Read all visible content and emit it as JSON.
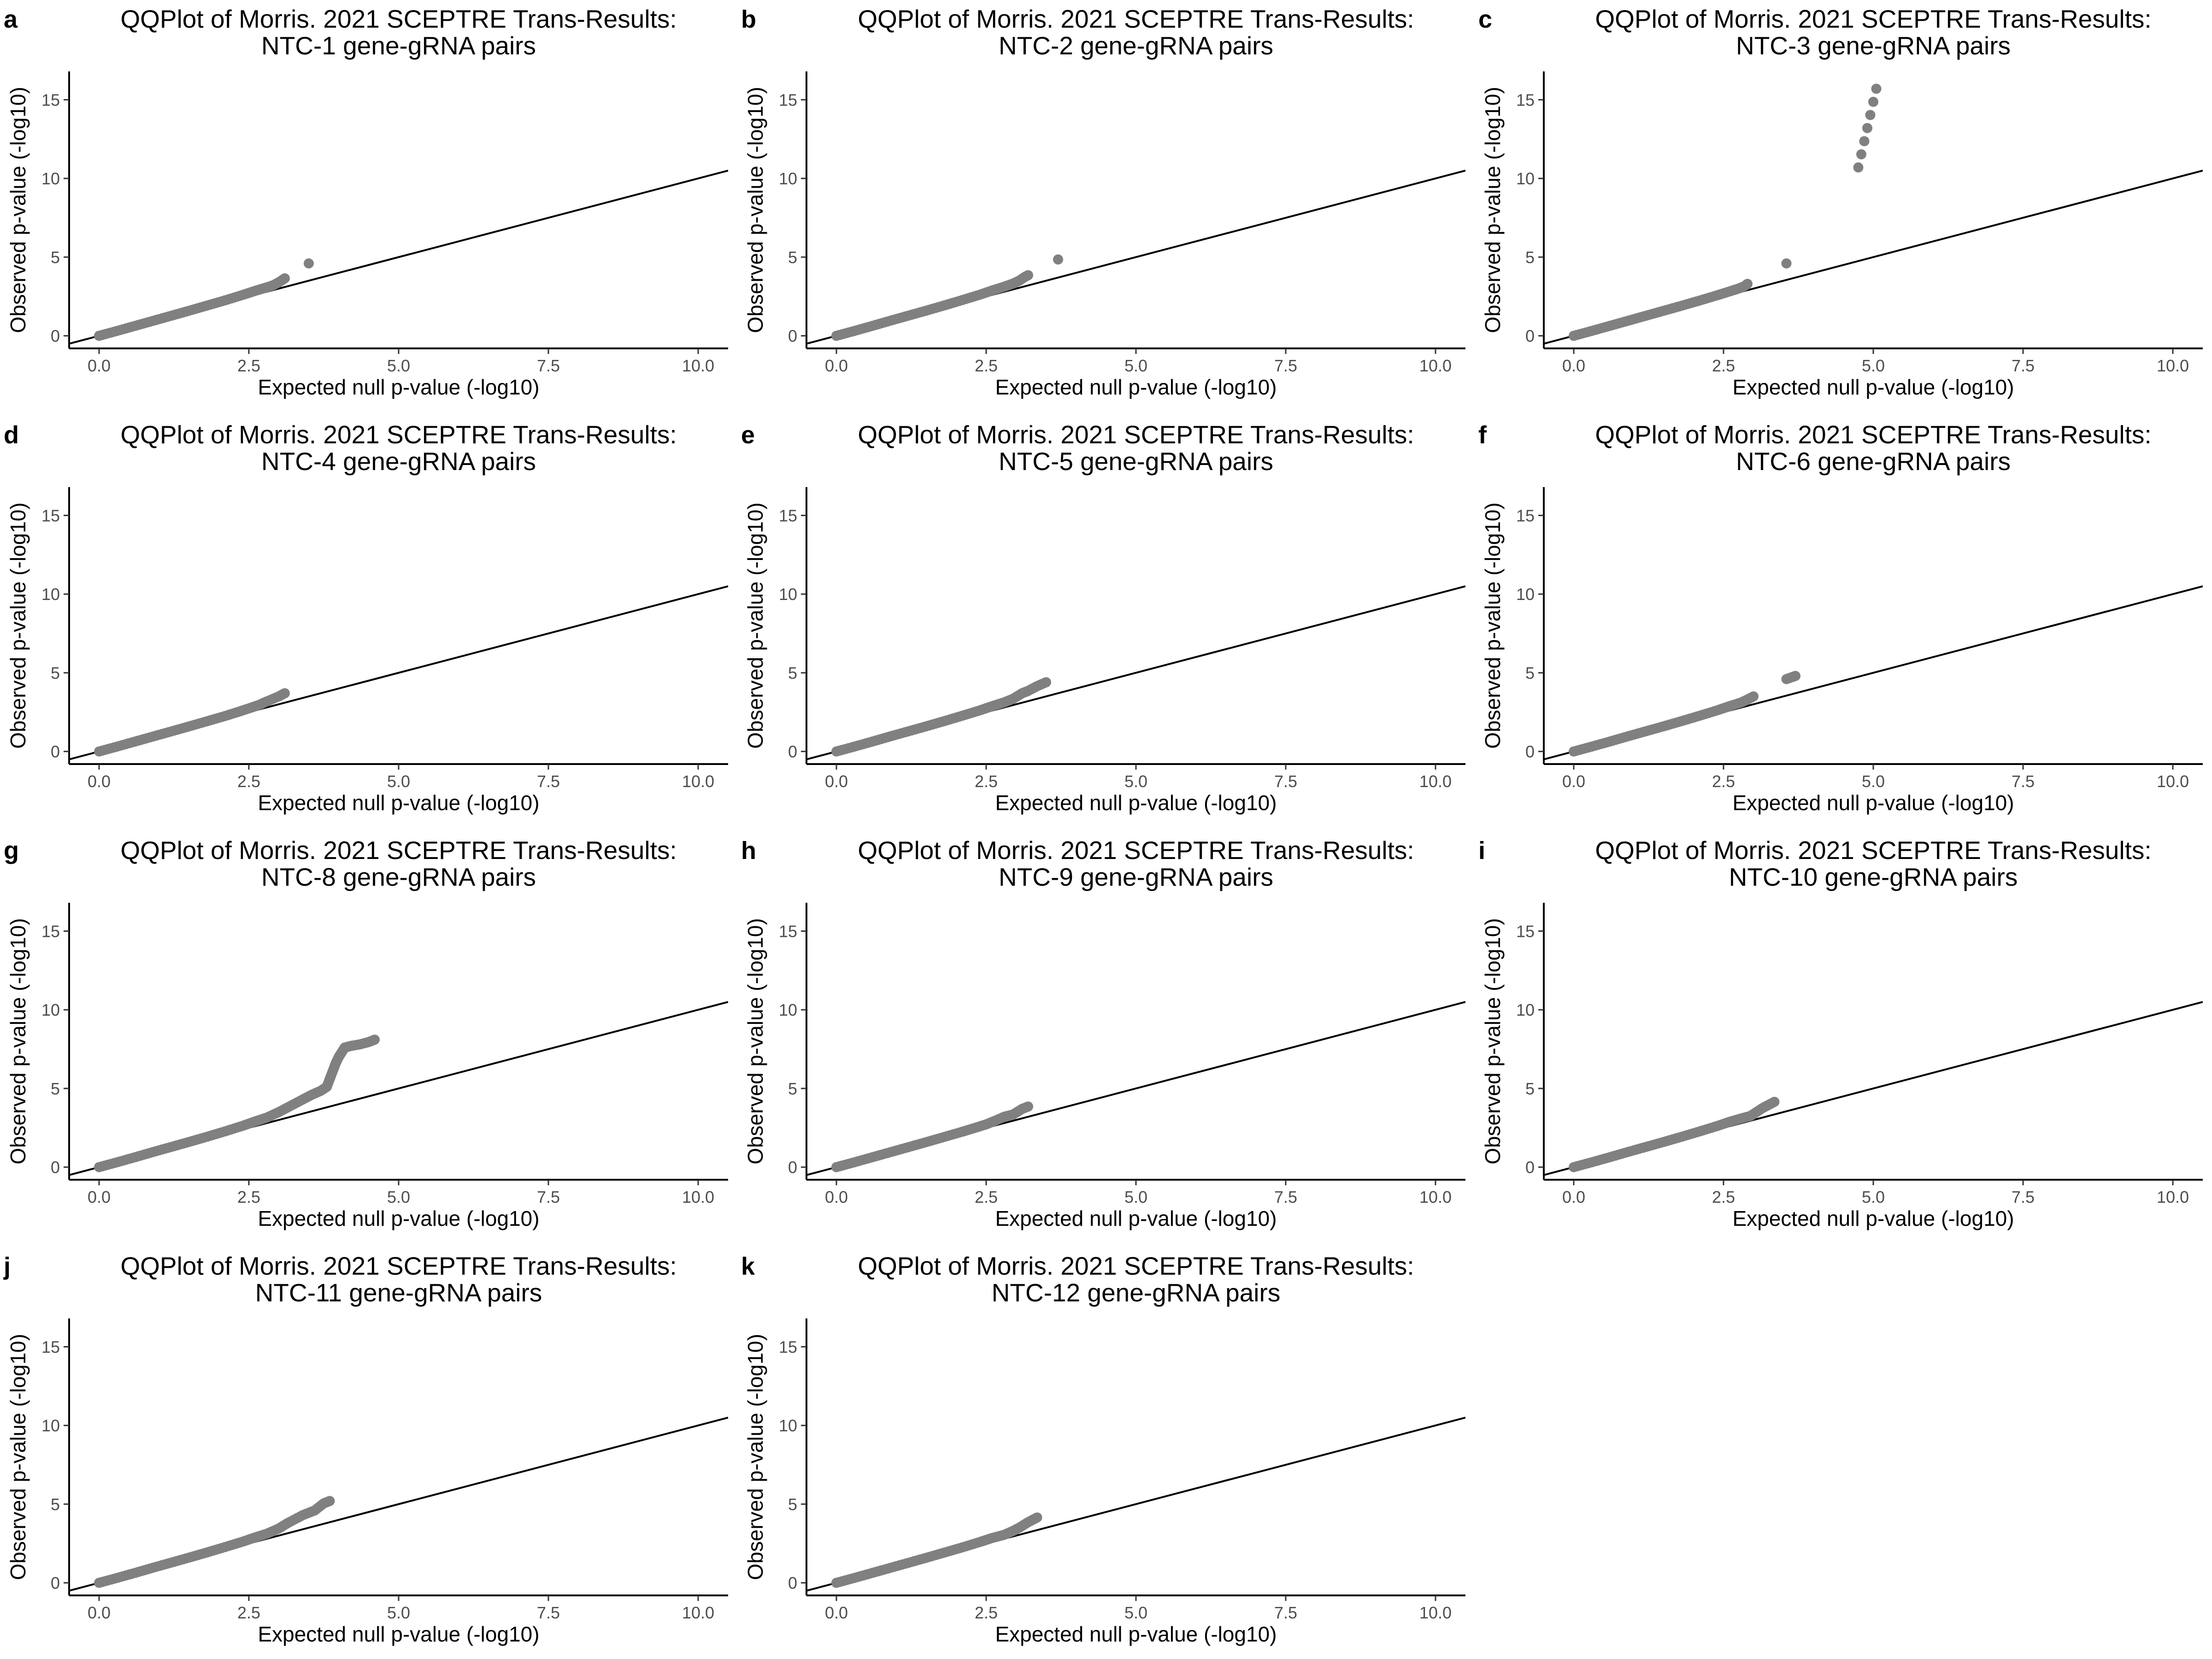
{
  "chart_data": [
    {
      "panel": "a",
      "type": "scatter",
      "title_line1": "QQPlot of Morris. 2021 SCEPTRE Trans-Results:",
      "title_line2": "NTC-1 gene-gRNA pairs",
      "xlabel": "Expected null p-value (-log10)",
      "ylabel": "Observed p-value (-log10)",
      "xlim": [
        -0.5,
        10.5
      ],
      "ylim": [
        -0.8,
        16.8
      ],
      "x_ticks": [
        "0.0",
        "2.5",
        "5.0",
        "7.5",
        "10.0"
      ],
      "y_ticks": [
        "0",
        "5",
        "10",
        "15"
      ],
      "reference_line": "y = x",
      "point_color": "#808080",
      "grid": false,
      "points": [
        [
          0,
          0
        ],
        [
          0.3,
          0.31
        ],
        [
          0.6,
          0.63
        ],
        [
          0.9,
          0.95
        ],
        [
          1.2,
          1.27
        ],
        [
          1.5,
          1.59
        ],
        [
          1.8,
          1.92
        ],
        [
          2.1,
          2.25
        ],
        [
          2.4,
          2.6
        ],
        [
          2.6,
          2.85
        ],
        [
          2.75,
          3.02
        ],
        [
          2.9,
          3.2
        ],
        [
          3.0,
          3.4
        ],
        [
          3.1,
          3.65
        ],
        [
          3.5,
          4.6
        ]
      ]
    },
    {
      "panel": "b",
      "type": "scatter",
      "title_line1": "QQPlot of Morris. 2021 SCEPTRE Trans-Results:",
      "title_line2": "NTC-2 gene-gRNA pairs",
      "xlabel": "Expected null p-value (-log10)",
      "ylabel": "Observed p-value (-log10)",
      "xlim": [
        -0.5,
        10.5
      ],
      "ylim": [
        -0.8,
        16.8
      ],
      "x_ticks": [
        "0.0",
        "2.5",
        "5.0",
        "7.5",
        "10.0"
      ],
      "y_ticks": [
        "0",
        "5",
        "10",
        "15"
      ],
      "reference_line": "y = x",
      "point_color": "#808080",
      "grid": false,
      "points": [
        [
          0,
          0
        ],
        [
          0.3,
          0.31
        ],
        [
          0.6,
          0.63
        ],
        [
          0.9,
          0.96
        ],
        [
          1.2,
          1.28
        ],
        [
          1.5,
          1.6
        ],
        [
          1.8,
          1.93
        ],
        [
          2.1,
          2.27
        ],
        [
          2.4,
          2.62
        ],
        [
          2.6,
          2.88
        ],
        [
          2.8,
          3.12
        ],
        [
          2.95,
          3.32
        ],
        [
          3.05,
          3.5
        ],
        [
          3.15,
          3.75
        ],
        [
          3.2,
          3.85
        ],
        [
          3.7,
          4.85
        ]
      ]
    },
    {
      "panel": "c",
      "type": "scatter",
      "title_line1": "QQPlot of Morris. 2021 SCEPTRE Trans-Results:",
      "title_line2": "NTC-3 gene-gRNA pairs",
      "xlabel": "Expected null p-value (-log10)",
      "ylabel": "Observed p-value (-log10)",
      "xlim": [
        -0.5,
        10.5
      ],
      "ylim": [
        -0.8,
        16.8
      ],
      "x_ticks": [
        "0.0",
        "2.5",
        "5.0",
        "7.5",
        "10.0"
      ],
      "y_ticks": [
        "0",
        "5",
        "10",
        "15"
      ],
      "reference_line": "y = x",
      "point_color": "#808080",
      "grid": false,
      "points": [
        [
          0,
          0
        ],
        [
          0.3,
          0.31
        ],
        [
          0.6,
          0.63
        ],
        [
          0.9,
          0.95
        ],
        [
          1.2,
          1.27
        ],
        [
          1.5,
          1.59
        ],
        [
          1.8,
          1.91
        ],
        [
          2.1,
          2.24
        ],
        [
          2.4,
          2.58
        ],
        [
          2.6,
          2.82
        ],
        [
          2.75,
          3.0
        ],
        [
          2.85,
          3.15
        ],
        [
          2.9,
          3.3
        ],
        [
          3.55,
          4.6
        ],
        [
          4.75,
          10.7
        ],
        [
          5.05,
          15.7
        ]
      ]
    },
    {
      "panel": "d",
      "type": "scatter",
      "title_line1": "QQPlot of Morris. 2021 SCEPTRE Trans-Results:",
      "title_line2": "NTC-4 gene-gRNA pairs",
      "xlabel": "Expected null p-value (-log10)",
      "ylabel": "Observed p-value (-log10)",
      "xlim": [
        -0.5,
        10.5
      ],
      "ylim": [
        -0.8,
        16.8
      ],
      "x_ticks": [
        "0.0",
        "2.5",
        "5.0",
        "7.5",
        "10.0"
      ],
      "y_ticks": [
        "0",
        "5",
        "10",
        "15"
      ],
      "reference_line": "y = x",
      "point_color": "#808080",
      "grid": false,
      "points": [
        [
          0,
          0
        ],
        [
          0.3,
          0.31
        ],
        [
          0.6,
          0.63
        ],
        [
          0.9,
          0.95
        ],
        [
          1.2,
          1.27
        ],
        [
          1.5,
          1.59
        ],
        [
          1.8,
          1.92
        ],
        [
          2.1,
          2.25
        ],
        [
          2.35,
          2.55
        ],
        [
          2.55,
          2.8
        ],
        [
          2.7,
          3.0
        ],
        [
          2.75,
          3.1
        ],
        [
          3.0,
          3.5
        ],
        [
          3.1,
          3.7
        ]
      ]
    },
    {
      "panel": "e",
      "type": "scatter",
      "title_line1": "QQPlot of Morris. 2021 SCEPTRE Trans-Results:",
      "title_line2": "NTC-5 gene-gRNA pairs",
      "xlabel": "Expected null p-value (-log10)",
      "ylabel": "Observed p-value (-log10)",
      "xlim": [
        -0.5,
        10.5
      ],
      "ylim": [
        -0.8,
        16.8
      ],
      "x_ticks": [
        "0.0",
        "2.5",
        "5.0",
        "7.5",
        "10.0"
      ],
      "y_ticks": [
        "0",
        "5",
        "10",
        "15"
      ],
      "reference_line": "y = x",
      "point_color": "#808080",
      "grid": false,
      "points": [
        [
          0,
          0
        ],
        [
          0.3,
          0.31
        ],
        [
          0.6,
          0.63
        ],
        [
          0.9,
          0.96
        ],
        [
          1.2,
          1.28
        ],
        [
          1.5,
          1.6
        ],
        [
          1.8,
          1.93
        ],
        [
          2.1,
          2.27
        ],
        [
          2.4,
          2.62
        ],
        [
          2.6,
          2.88
        ],
        [
          2.8,
          3.12
        ],
        [
          2.95,
          3.35
        ],
        [
          3.1,
          3.7
        ],
        [
          3.2,
          3.85
        ],
        [
          3.35,
          4.15
        ],
        [
          3.5,
          4.4
        ]
      ]
    },
    {
      "panel": "f",
      "type": "scatter",
      "title_line1": "QQPlot of Morris. 2021 SCEPTRE Trans-Results:",
      "title_line2": "NTC-6 gene-gRNA pairs",
      "xlabel": "Expected null p-value (-log10)",
      "ylabel": "Observed p-value (-log10)",
      "xlim": [
        -0.5,
        10.5
      ],
      "ylim": [
        -0.8,
        16.8
      ],
      "x_ticks": [
        "0.0",
        "2.5",
        "5.0",
        "7.5",
        "10.0"
      ],
      "y_ticks": [
        "0",
        "5",
        "10",
        "15"
      ],
      "reference_line": "y = x",
      "point_color": "#808080",
      "grid": false,
      "points": [
        [
          0,
          0
        ],
        [
          0.3,
          0.31
        ],
        [
          0.6,
          0.63
        ],
        [
          0.9,
          0.96
        ],
        [
          1.2,
          1.28
        ],
        [
          1.5,
          1.6
        ],
        [
          1.8,
          1.93
        ],
        [
          2.1,
          2.27
        ],
        [
          2.4,
          2.62
        ],
        [
          2.6,
          2.88
        ],
        [
          2.8,
          3.12
        ],
        [
          2.9,
          3.3
        ],
        [
          3.0,
          3.5
        ],
        [
          3.55,
          4.6
        ],
        [
          3.7,
          4.8
        ]
      ]
    },
    {
      "panel": "g",
      "type": "scatter",
      "title_line1": "QQPlot of Morris. 2021 SCEPTRE Trans-Results:",
      "title_line2": "NTC-8 gene-gRNA pairs",
      "xlabel": "Expected null p-value (-log10)",
      "ylabel": "Observed p-value (-log10)",
      "xlim": [
        -0.5,
        10.5
      ],
      "ylim": [
        -0.8,
        16.8
      ],
      "x_ticks": [
        "0.0",
        "2.5",
        "5.0",
        "7.5",
        "10.0"
      ],
      "y_ticks": [
        "0",
        "5",
        "10",
        "15"
      ],
      "reference_line": "y = x",
      "point_color": "#808080",
      "grid": false,
      "points": [
        [
          0,
          0
        ],
        [
          0.3,
          0.31
        ],
        [
          0.6,
          0.63
        ],
        [
          0.9,
          0.96
        ],
        [
          1.2,
          1.28
        ],
        [
          1.5,
          1.6
        ],
        [
          1.8,
          1.93
        ],
        [
          2.1,
          2.27
        ],
        [
          2.4,
          2.63
        ],
        [
          2.6,
          2.9
        ],
        [
          2.8,
          3.15
        ],
        [
          3.0,
          3.5
        ],
        [
          3.2,
          3.9
        ],
        [
          3.4,
          4.3
        ],
        [
          3.55,
          4.6
        ],
        [
          3.7,
          4.85
        ],
        [
          3.8,
          5.1
        ],
        [
          3.85,
          5.6
        ],
        [
          3.9,
          6.1
        ],
        [
          3.95,
          6.6
        ],
        [
          4.0,
          7.0
        ],
        [
          4.05,
          7.3
        ],
        [
          4.1,
          7.6
        ],
        [
          4.2,
          7.7
        ],
        [
          4.35,
          7.8
        ],
        [
          4.5,
          7.95
        ],
        [
          4.6,
          8.1
        ]
      ]
    },
    {
      "panel": "h",
      "type": "scatter",
      "title_line1": "QQPlot of Morris. 2021 SCEPTRE Trans-Results:",
      "title_line2": "NTC-9 gene-gRNA pairs",
      "xlabel": "Expected null p-value (-log10)",
      "ylabel": "Observed p-value (-log10)",
      "xlim": [
        -0.5,
        10.5
      ],
      "ylim": [
        -0.8,
        16.8
      ],
      "x_ticks": [
        "0.0",
        "2.5",
        "5.0",
        "7.5",
        "10.0"
      ],
      "y_ticks": [
        "0",
        "5",
        "10",
        "15"
      ],
      "reference_line": "y = x",
      "point_color": "#808080",
      "grid": false,
      "points": [
        [
          0,
          0
        ],
        [
          0.3,
          0.31
        ],
        [
          0.6,
          0.63
        ],
        [
          0.9,
          0.95
        ],
        [
          1.2,
          1.27
        ],
        [
          1.5,
          1.59
        ],
        [
          1.8,
          1.92
        ],
        [
          2.1,
          2.25
        ],
        [
          2.3,
          2.48
        ],
        [
          2.5,
          2.72
        ],
        [
          2.65,
          2.95
        ],
        [
          2.8,
          3.2
        ],
        [
          2.95,
          3.35
        ],
        [
          3.1,
          3.7
        ],
        [
          3.2,
          3.85
        ]
      ]
    },
    {
      "panel": "i",
      "type": "scatter",
      "title_line1": "QQPlot of Morris. 2021 SCEPTRE Trans-Results:",
      "title_line2": "NTC-10 gene-gRNA pairs",
      "xlabel": "Expected null p-value (-log10)",
      "ylabel": "Observed p-value (-log10)",
      "xlim": [
        -0.5,
        10.5
      ],
      "ylim": [
        -0.8,
        16.8
      ],
      "x_ticks": [
        "0.0",
        "2.5",
        "5.0",
        "7.5",
        "10.0"
      ],
      "y_ticks": [
        "0",
        "5",
        "10",
        "15"
      ],
      "reference_line": "y = x",
      "point_color": "#808080",
      "grid": false,
      "points": [
        [
          0,
          0
        ],
        [
          0.3,
          0.31
        ],
        [
          0.6,
          0.63
        ],
        [
          0.9,
          0.96
        ],
        [
          1.2,
          1.28
        ],
        [
          1.5,
          1.6
        ],
        [
          1.8,
          1.93
        ],
        [
          2.1,
          2.27
        ],
        [
          2.4,
          2.62
        ],
        [
          2.6,
          2.88
        ],
        [
          2.8,
          3.1
        ],
        [
          2.95,
          3.25
        ],
        [
          3.05,
          3.5
        ],
        [
          3.15,
          3.75
        ],
        [
          3.25,
          3.95
        ],
        [
          3.35,
          4.15
        ]
      ]
    },
    {
      "panel": "j",
      "type": "scatter",
      "title_line1": "QQPlot of Morris. 2021 SCEPTRE Trans-Results:",
      "title_line2": "NTC-11 gene-gRNA pairs",
      "xlabel": "Expected null p-value (-log10)",
      "ylabel": "Observed p-value (-log10)",
      "xlim": [
        -0.5,
        10.5
      ],
      "ylim": [
        -0.8,
        16.8
      ],
      "x_ticks": [
        "0.0",
        "2.5",
        "5.0",
        "7.5",
        "10.0"
      ],
      "y_ticks": [
        "0",
        "5",
        "10",
        "15"
      ],
      "reference_line": "y = x",
      "point_color": "#808080",
      "grid": false,
      "points": [
        [
          0,
          0
        ],
        [
          0.3,
          0.31
        ],
        [
          0.6,
          0.63
        ],
        [
          0.9,
          0.96
        ],
        [
          1.2,
          1.28
        ],
        [
          1.5,
          1.6
        ],
        [
          1.8,
          1.93
        ],
        [
          2.1,
          2.27
        ],
        [
          2.4,
          2.62
        ],
        [
          2.6,
          2.88
        ],
        [
          2.8,
          3.12
        ],
        [
          3.0,
          3.45
        ],
        [
          3.15,
          3.8
        ],
        [
          3.4,
          4.3
        ],
        [
          3.6,
          4.6
        ],
        [
          3.75,
          5.05
        ],
        [
          3.85,
          5.2
        ]
      ]
    },
    {
      "panel": "k",
      "type": "scatter",
      "title_line1": "QQPlot of Morris. 2021 SCEPTRE Trans-Results:",
      "title_line2": "NTC-12 gene-gRNA pairs",
      "xlabel": "Expected null p-value (-log10)",
      "ylabel": "Observed p-value (-log10)",
      "xlim": [
        -0.5,
        10.5
      ],
      "ylim": [
        -0.8,
        16.8
      ],
      "x_ticks": [
        "0.0",
        "2.5",
        "5.0",
        "7.5",
        "10.0"
      ],
      "y_ticks": [
        "0",
        "5",
        "10",
        "15"
      ],
      "reference_line": "y = x",
      "point_color": "#808080",
      "grid": false,
      "points": [
        [
          0,
          0
        ],
        [
          0.3,
          0.31
        ],
        [
          0.6,
          0.63
        ],
        [
          0.9,
          0.95
        ],
        [
          1.2,
          1.27
        ],
        [
          1.5,
          1.59
        ],
        [
          1.8,
          1.92
        ],
        [
          2.1,
          2.25
        ],
        [
          2.4,
          2.6
        ],
        [
          2.6,
          2.85
        ],
        [
          2.8,
          3.05
        ],
        [
          2.95,
          3.3
        ],
        [
          3.05,
          3.5
        ],
        [
          3.2,
          3.85
        ],
        [
          3.35,
          4.15
        ]
      ]
    }
  ]
}
